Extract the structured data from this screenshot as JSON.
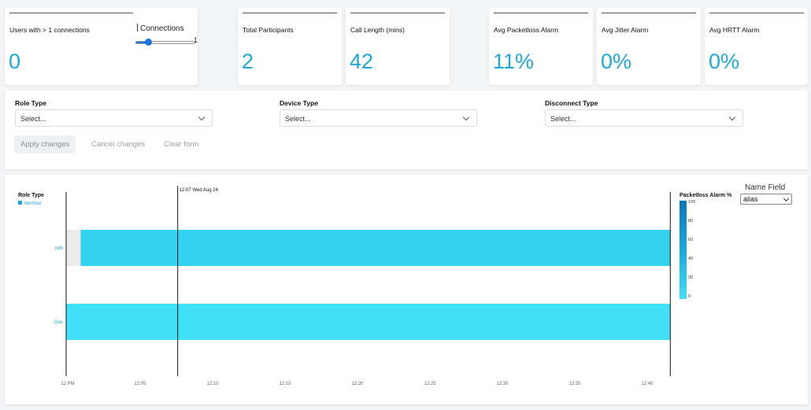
{
  "stats": {
    "users_multi": {
      "title": "Users with > 1 connections",
      "value": "0"
    },
    "connections": {
      "label": "Connections",
      "slider_value": "1",
      "slider_fraction": 0.2
    },
    "total_participants": {
      "title": "Total Participants",
      "value": "2"
    },
    "call_length": {
      "title": "Call Length (mins)",
      "value": "42"
    },
    "packetloss": {
      "title": "Avg Packetloss Alarm",
      "value": "11%"
    },
    "jitter": {
      "title": "Avg Jitter Alarm",
      "value": "0%"
    },
    "hrtt": {
      "title": "Avg HRTT Alarm",
      "value": "0%"
    }
  },
  "filters": {
    "role_type": {
      "label": "Role Type",
      "placeholder": "Select..."
    },
    "device_type": {
      "label": "Device Type",
      "placeholder": "Select..."
    },
    "disconnect_type": {
      "label": "Disconnect Type",
      "placeholder": "Select..."
    },
    "apply_label": "Apply changes",
    "cancel_label": "Cancel changes",
    "clear_label": "Clear form"
  },
  "name_field": {
    "label": "Name Field",
    "value": "alias"
  },
  "colors": {
    "accent": "#1ba9dd",
    "bar_light": "#40e0f8",
    "bar_mid": "#33d2ef",
    "gap": "#ececec"
  },
  "chart_data": {
    "type": "timeline",
    "legend_title": "Role Type",
    "legend_items": [
      "Member"
    ],
    "cursor_label": "12:07 Wed Aug 24",
    "cursor_minutes": 7.7,
    "x_ticks": [
      "12 PM",
      "12:05",
      "12:10",
      "12:15",
      "12:20",
      "12:25",
      "12:30",
      "12:35",
      "12:40"
    ],
    "x_range_minutes": [
      0,
      41.7
    ],
    "rows": [
      {
        "name": "ruth",
        "gap_until": 1.0,
        "start": 1.0,
        "end": 41.7,
        "packetloss": 20
      },
      {
        "name": "Dan",
        "start": 0,
        "end": 41.7,
        "packetloss": 0
      }
    ],
    "colorbar": {
      "title": "Packetloss Alarm %",
      "ticks": [
        "100",
        "80",
        "60",
        "40",
        "20",
        "0"
      ],
      "range": [
        0,
        100
      ]
    }
  }
}
